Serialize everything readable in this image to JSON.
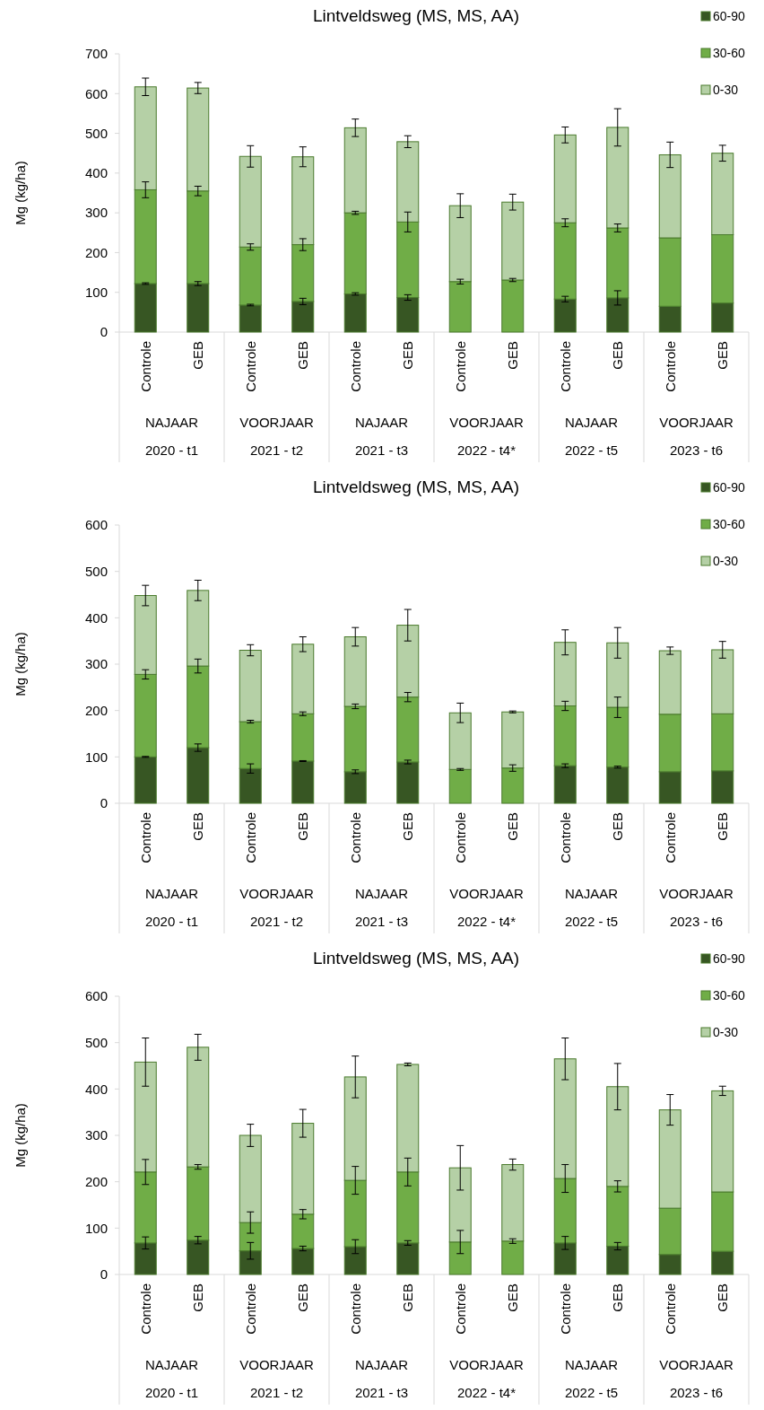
{
  "chart_data": [
    {
      "type": "bar",
      "title": "Lintveldsweg (MS, MS, AA)",
      "ylabel": "Mg (kg/ha)",
      "stacked": true,
      "legend": "top right",
      "grid": false,
      "categories": [
        "Controle",
        "GEB",
        "Controle",
        "GEB",
        "Controle",
        "GEB",
        "Controle",
        "GEB",
        "Controle",
        "GEB",
        "Controle",
        "GEB"
      ],
      "annotations": [
        "NAJAAR",
        "VOORJAAR",
        "NAJAAR",
        "VOORJAAR",
        "NAJAAR",
        "VOORJAAR",
        "2020 - t1",
        "2021 - t2",
        "2021 - t3",
        "2022 - t4*",
        "2022 - t5",
        "2023 - t6"
      ],
      "ylim": [
        0,
        700
      ],
      "yticks": [
        0,
        100,
        200,
        300,
        400,
        500,
        600,
        700
      ],
      "series": [
        {
          "name": "60-90",
          "color": "#375623",
          "values": [
            122,
            122,
            68,
            77,
            96,
            87,
            0,
            0,
            83,
            86,
            65,
            73
          ],
          "errors": [
            2,
            5,
            2,
            8,
            3,
            7,
            null,
            null,
            7,
            18,
            null,
            null
          ]
        },
        {
          "name": "30-60",
          "color": "#70ad47",
          "values": [
            236,
            233,
            146,
            143,
            204,
            190,
            127,
            131,
            192,
            176,
            172,
            172
          ],
          "errors": [
            20,
            12,
            8,
            15,
            4,
            25,
            6,
            4,
            10,
            10,
            null,
            null
          ]
        },
        {
          "name": "0-30",
          "color": "#b5d0a6",
          "values": [
            259,
            259,
            228,
            221,
            214,
            202,
            191,
            196,
            221,
            253,
            209,
            205
          ],
          "errors": [
            22,
            14,
            27,
            25,
            22,
            15,
            30,
            20,
            20,
            47,
            32,
            20
          ]
        }
      ]
    },
    {
      "type": "bar",
      "title": "Lintveldsweg (MS, MS, AA)",
      "ylabel": "Mg (kg/ha)",
      "stacked": true,
      "legend": "top right",
      "grid": false,
      "categories": [
        "Controle",
        "GEB",
        "Controle",
        "GEB",
        "Controle",
        "GEB",
        "Controle",
        "GEB",
        "Controle",
        "GEB",
        "Controle",
        "GEB"
      ],
      "annotations": [
        "NAJAAR",
        "VOORJAAR",
        "NAJAAR",
        "VOORJAAR",
        "NAJAAR",
        "VOORJAAR",
        "2020 - t1",
        "2021 - t2",
        "2021 - t3",
        "2022 - t4*",
        "2022 - t5",
        "2023 - t6"
      ],
      "ylim": [
        0,
        600
      ],
      "yticks": [
        0,
        100,
        200,
        300,
        400,
        500,
        600
      ],
      "series": [
        {
          "name": "60-90",
          "color": "#375623",
          "values": [
            100,
            120,
            75,
            91,
            68,
            89,
            0,
            0,
            81,
            78,
            68,
            70
          ],
          "errors": [
            1,
            8,
            10,
            1,
            4,
            4,
            null,
            null,
            4,
            2,
            null,
            null
          ]
        },
        {
          "name": "30-60",
          "color": "#70ad47",
          "values": [
            178,
            176,
            101,
            102,
            141,
            140,
            73,
            76,
            129,
            129,
            124,
            123
          ],
          "errors": [
            10,
            15,
            3,
            4,
            5,
            10,
            2,
            7,
            10,
            22,
            null,
            null
          ]
        },
        {
          "name": "0-30",
          "color": "#b5d0a6",
          "values": [
            170,
            163,
            154,
            150,
            150,
            155,
            122,
            121,
            137,
            139,
            137,
            138
          ],
          "errors": [
            22,
            22,
            12,
            16,
            20,
            34,
            21,
            2,
            27,
            33,
            8,
            18
          ]
        }
      ]
    },
    {
      "type": "bar",
      "title": "Lintveldsweg (MS, MS, AA)",
      "ylabel": "Mg (kg/ha)",
      "stacked": true,
      "legend": "top right",
      "grid": false,
      "categories": [
        "Controle",
        "GEB",
        "Controle",
        "GEB",
        "Controle",
        "GEB",
        "Controle",
        "GEB",
        "Controle",
        "GEB",
        "Controle",
        "GEB"
      ],
      "annotations": [
        "NAJAAR",
        "VOORJAAR",
        "NAJAAR",
        "VOORJAAR",
        "NAJAAR",
        "VOORJAAR",
        "2020 - t1",
        "2021 - t2",
        "2021 - t3",
        "2022 - t4*",
        "2022 - t5",
        "2023 - t6"
      ],
      "ylim": [
        0,
        600
      ],
      "yticks": [
        0,
        100,
        200,
        300,
        400,
        500,
        600
      ],
      "series": [
        {
          "name": "60-90",
          "color": "#375623",
          "values": [
            68,
            74,
            51,
            56,
            60,
            68,
            0,
            0,
            68,
            61,
            43,
            50
          ],
          "errors": [
            13,
            8,
            18,
            5,
            15,
            5,
            null,
            null,
            14,
            8,
            null,
            null
          ]
        },
        {
          "name": "30-60",
          "color": "#70ad47",
          "values": [
            153,
            158,
            61,
            74,
            143,
            153,
            70,
            72,
            139,
            129,
            100,
            128
          ],
          "errors": [
            27,
            5,
            23,
            10,
            30,
            30,
            25,
            5,
            30,
            12,
            null,
            null
          ]
        },
        {
          "name": "0-30",
          "color": "#b5d0a6",
          "values": [
            237,
            258,
            188,
            196,
            223,
            232,
            160,
            165,
            258,
            215,
            212,
            218
          ],
          "errors": [
            52,
            28,
            24,
            30,
            45,
            3,
            48,
            12,
            45,
            50,
            33,
            10
          ]
        }
      ]
    }
  ]
}
